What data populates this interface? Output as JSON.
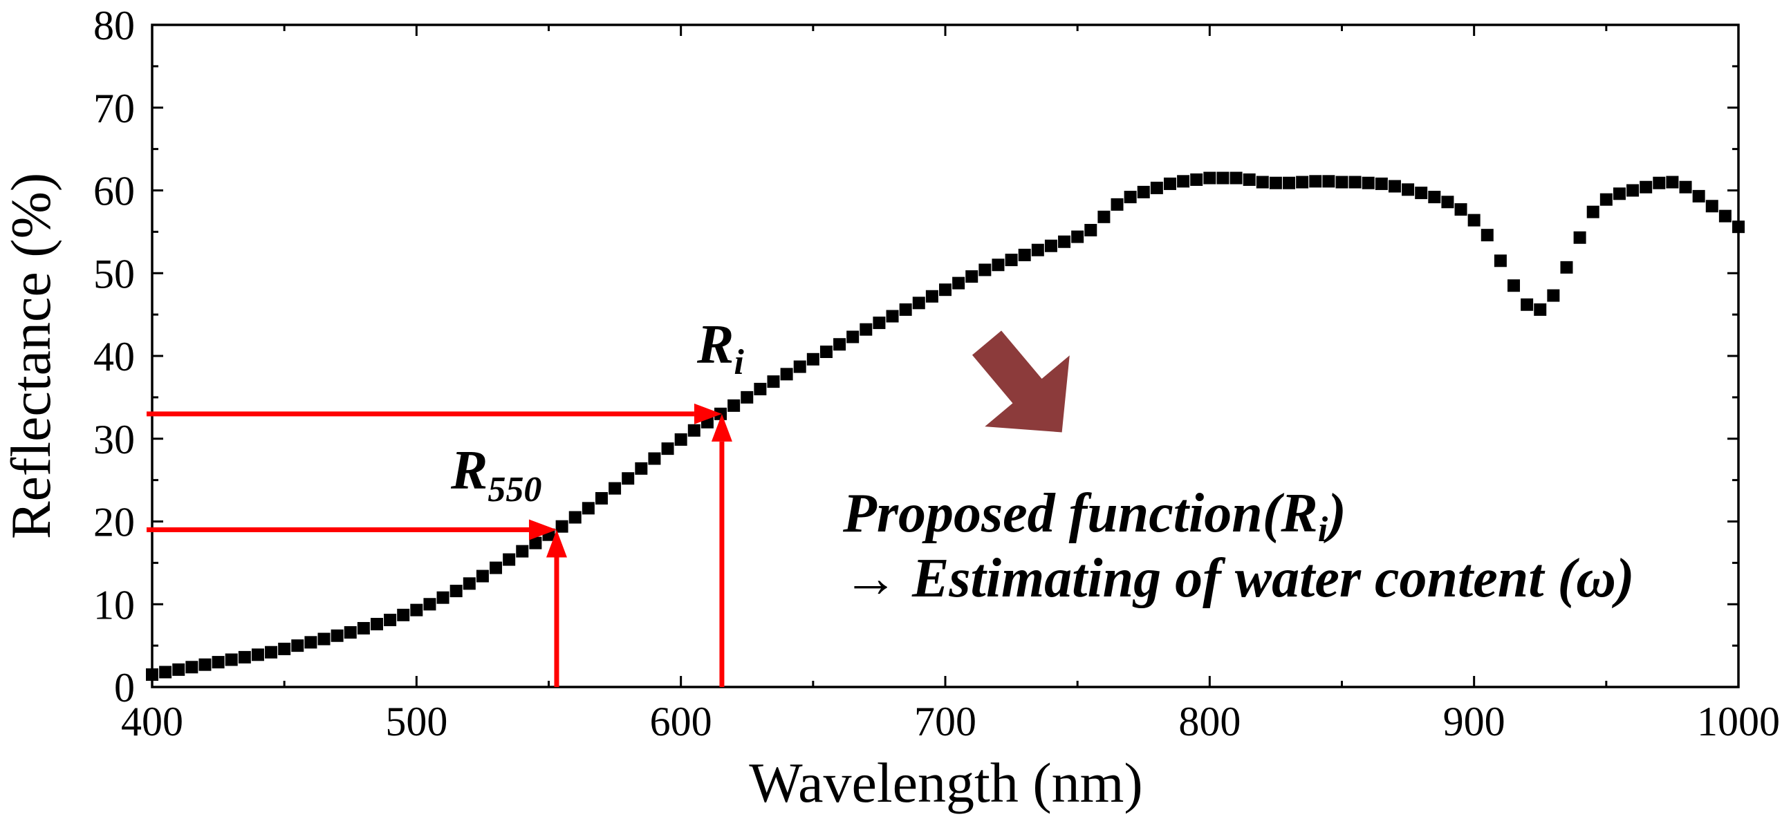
{
  "chart_data": {
    "type": "scatter",
    "title": "",
    "xlabel": "Wavelength (nm)",
    "ylabel": "Reflectance (%)",
    "xlim": [
      400,
      1000
    ],
    "ylim": [
      0,
      80
    ],
    "x_ticks": [
      400,
      500,
      600,
      700,
      800,
      900,
      1000
    ],
    "y_ticks": [
      0,
      10,
      20,
      30,
      40,
      50,
      60,
      70,
      80
    ],
    "grid": false,
    "series": [
      {
        "color": "#000000",
        "x": [
          400,
          405,
          410,
          415,
          420,
          425,
          430,
          435,
          440,
          445,
          450,
          455,
          460,
          465,
          470,
          475,
          480,
          485,
          490,
          495,
          500,
          505,
          510,
          515,
          520,
          525,
          530,
          535,
          540,
          545,
          550,
          555,
          560,
          565,
          570,
          575,
          580,
          585,
          590,
          595,
          600,
          605,
          610,
          615,
          620,
          625,
          630,
          635,
          640,
          645,
          650,
          655,
          660,
          665,
          670,
          675,
          680,
          685,
          690,
          695,
          700,
          705,
          710,
          715,
          720,
          725,
          730,
          735,
          740,
          745,
          750,
          755,
          760,
          765,
          770,
          775,
          780,
          785,
          790,
          795,
          800,
          805,
          810,
          815,
          820,
          825,
          830,
          835,
          840,
          845,
          850,
          855,
          860,
          865,
          870,
          875,
          880,
          885,
          890,
          895,
          900,
          905,
          910,
          915,
          920,
          925,
          930,
          935,
          940,
          945,
          950,
          955,
          960,
          965,
          970,
          975,
          980,
          985,
          990,
          995,
          1000
        ],
        "y": [
          1.5,
          1.8,
          2.1,
          2.4,
          2.7,
          3.0,
          3.3,
          3.6,
          3.9,
          4.2,
          4.6,
          5.0,
          5.4,
          5.8,
          6.2,
          6.6,
          7.1,
          7.6,
          8.1,
          8.7,
          9.3,
          10.0,
          10.8,
          11.6,
          12.5,
          13.4,
          14.4,
          15.4,
          16.4,
          17.4,
          18.4,
          19.4,
          20.5,
          21.6,
          22.8,
          24.0,
          25.2,
          26.4,
          27.6,
          28.8,
          29.9,
          31.0,
          32.0,
          33.0,
          34.0,
          35.0,
          36.0,
          36.9,
          37.8,
          38.7,
          39.6,
          40.5,
          41.4,
          42.3,
          43.2,
          44.0,
          44.8,
          45.6,
          46.4,
          47.2,
          48.0,
          48.8,
          49.6,
          50.4,
          51.0,
          51.6,
          52.2,
          52.8,
          53.3,
          53.8,
          54.4,
          55.2,
          56.8,
          58.3,
          59.2,
          59.8,
          60.3,
          60.8,
          61.1,
          61.3,
          61.5,
          61.5,
          61.5,
          61.3,
          61.0,
          60.9,
          60.9,
          61.0,
          61.1,
          61.1,
          61.0,
          61.0,
          60.9,
          60.8,
          60.5,
          60.1,
          59.7,
          59.2,
          58.6,
          57.7,
          56.4,
          54.6,
          51.5,
          48.5,
          46.2,
          45.6,
          47.3,
          50.7,
          54.3,
          57.4,
          58.9,
          59.6,
          60.0,
          60.4,
          60.9,
          61.0,
          60.4,
          59.3,
          58.1,
          56.9,
          55.6
        ]
      }
    ],
    "annotations": [
      {
        "label": "R",
        "subscript": "550",
        "wavelength": 553,
        "reflectance": 19,
        "color": "#ff0000"
      },
      {
        "label": "R",
        "subscript": "i",
        "wavelength": 615.5,
        "reflectance": 33,
        "color": "#ff0000"
      }
    ],
    "note": {
      "line1_prefix": "Proposed function(",
      "line1_symbol": "R",
      "line1_subscript": "i",
      "line1_suffix": ")",
      "line2": "→ Estimating of water content (ω)"
    },
    "note_arrow_color": "#8c3b3b"
  }
}
